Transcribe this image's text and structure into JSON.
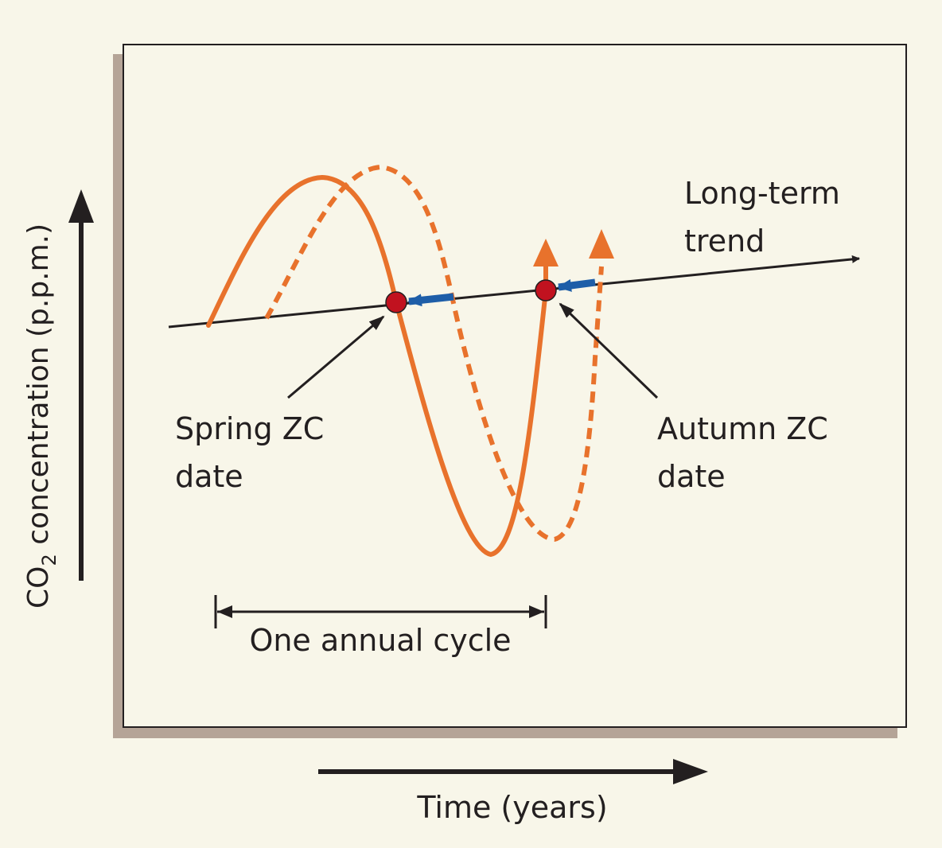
{
  "y_axis_label": {
    "prefix": "CO",
    "subscript": "2",
    "suffix": " concentration (p.p.m.)"
  },
  "x_axis_label": "Time (years)",
  "trend_label": {
    "line1": "Long-term",
    "line2": "trend"
  },
  "spring_label": {
    "line1": "Spring ZC",
    "line2": "date"
  },
  "autumn_label": {
    "line1": "Autumn ZC",
    "line2": "date"
  },
  "cycle_label": "One annual cycle",
  "colors": {
    "background": "#f8f6e9",
    "panel": "#f8f6e9",
    "panel_shadow": "#b5a497",
    "curve": "#e8722c",
    "shift_arrow": "#1e5ea8",
    "zero_crossing": "#c1121f",
    "ink": "#231f20"
  }
}
